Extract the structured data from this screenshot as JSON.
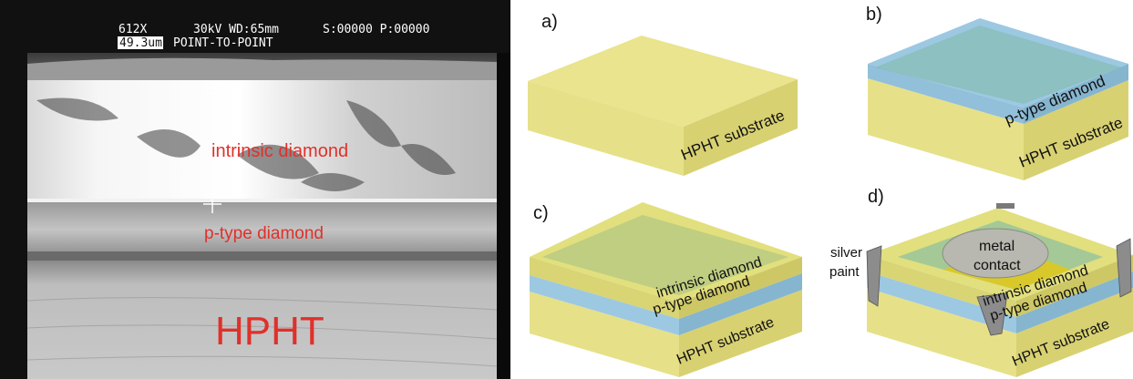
{
  "sem": {
    "header_row1": {
      "magnification": "612X",
      "settings": "30kV WD:65mm",
      "counters": "S:00000 P:00000"
    },
    "header_row2": {
      "scale": "49.3um",
      "mode": "POINT-TO-POINT"
    },
    "layer_labels": {
      "intrinsic": "intrinsic diamond",
      "ptype": "p-type diamond",
      "hpht": "HPHT"
    }
  },
  "panels": {
    "a": {
      "letter": "a)",
      "substrate": "HPHT substrate"
    },
    "b": {
      "letter": "b)",
      "ptype": "p-type diamond",
      "substrate": "HPHT substrate"
    },
    "c": {
      "letter": "c)",
      "intrinsic": "intrinsic diamond",
      "ptype": "p-type diamond",
      "substrate": "HPHT substrate"
    },
    "d": {
      "letter": "d)",
      "silver_paint_line1": "silver",
      "silver_paint_line2": "paint",
      "metal_contact_line1": "metal",
      "metal_contact_line2": "contact",
      "intrinsic": "intrinsic diamond",
      "ptype": "p-type diamond",
      "substrate": "HPHT substrate"
    }
  },
  "colors": {
    "substrate_top": "#e9e48d",
    "substrate_left": "#e6e089",
    "substrate_right": "#d8d172",
    "ptype_blue": "#9cc8e2",
    "intrinsic_yellow": "#e2df7e",
    "sem_label_red": "#e0302a"
  }
}
